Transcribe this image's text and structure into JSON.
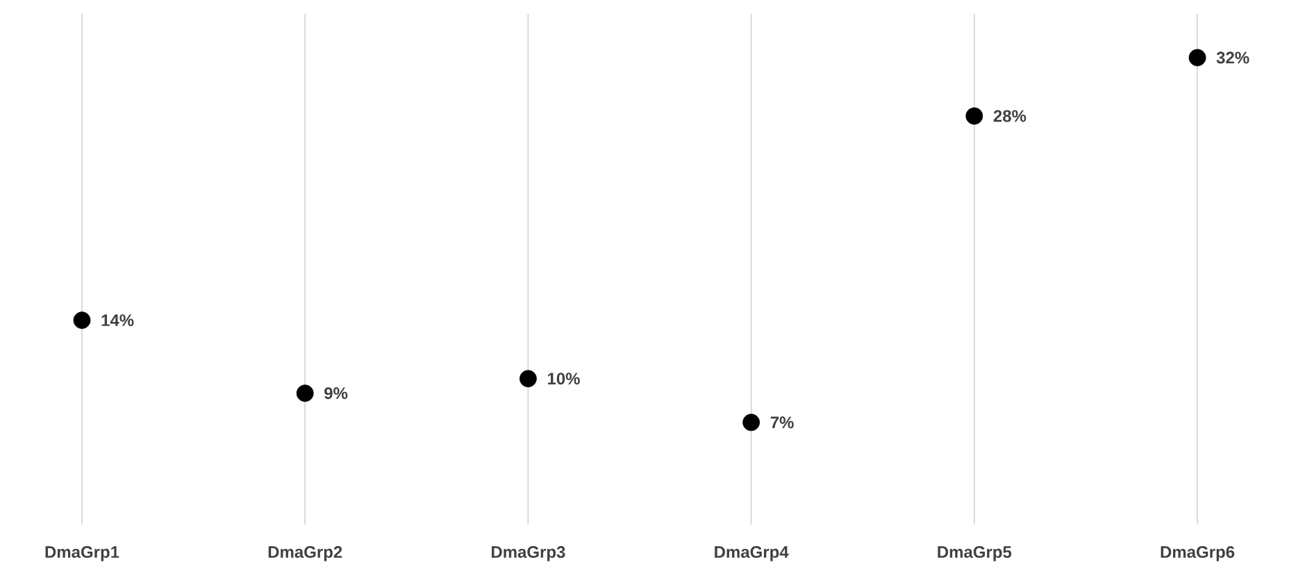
{
  "chart_data": {
    "type": "scatter",
    "categories": [
      "DmaGrp1",
      "DmaGrp2",
      "DmaGrp3",
      "DmaGrp4",
      "DmaGrp5",
      "DmaGrp6"
    ],
    "values": [
      14,
      9,
      10,
      7,
      28,
      32
    ],
    "value_labels": [
      "14%",
      "9%",
      "10%",
      "7%",
      "28%",
      "32%"
    ],
    "color": "#000000",
    "marker": "circle",
    "grid": "x",
    "ylim": [
      0,
      35
    ],
    "tick_labels": "x"
  }
}
